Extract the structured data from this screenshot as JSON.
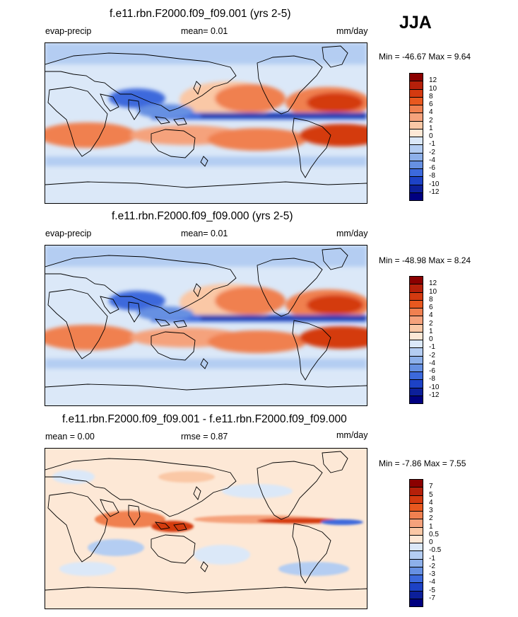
{
  "season": "JJA",
  "panels": [
    {
      "title": "f.e11.rbn.F2000.f09_f09.001 (yrs 2-5)",
      "left_label": "evap-precip",
      "center_label": "mean=   0.01",
      "units": "mm/day",
      "minmax": "Min = -46.67 Max =   9.64",
      "colorbar_labels": [
        "12",
        "10",
        "8",
        "6",
        "4",
        "2",
        "1",
        "0",
        "-1",
        "-2",
        "-4",
        "-6",
        "-8",
        "-10",
        "-12"
      ],
      "colorbar_colors": [
        "#8b0000",
        "#b5200a",
        "#d43a10",
        "#e8581f",
        "#f08050",
        "#f5a27c",
        "#fac8a6",
        "#fde8d6",
        "#dbe8f8",
        "#b4cdf2",
        "#8db0ea",
        "#6690e2",
        "#3c69dc",
        "#1d42c6",
        "#0c1f9a",
        "#000080"
      ]
    },
    {
      "title": "f.e11.rbn.F2000.f09_f09.000 (yrs 2-5)",
      "left_label": "evap-precip",
      "center_label": "mean=   0.01",
      "units": "mm/day",
      "minmax": "Min = -48.98 Max =   8.24",
      "colorbar_labels": [
        "12",
        "10",
        "8",
        "6",
        "4",
        "2",
        "1",
        "0",
        "-1",
        "-2",
        "-4",
        "-6",
        "-8",
        "-10",
        "-12"
      ],
      "colorbar_colors": [
        "#8b0000",
        "#b5200a",
        "#d43a10",
        "#e8581f",
        "#f08050",
        "#f5a27c",
        "#fac8a6",
        "#fde8d6",
        "#dbe8f8",
        "#b4cdf2",
        "#8db0ea",
        "#6690e2",
        "#3c69dc",
        "#1d42c6",
        "#0c1f9a",
        "#000080"
      ]
    },
    {
      "title": "f.e11.rbn.F2000.f09_f09.001 - f.e11.rbn.F2000.f09_f09.000",
      "left_label": "mean =   0.00",
      "center_label": "rmse =   0.87",
      "units": "mm/day",
      "minmax": "Min =  -7.86 Max =   7.55",
      "colorbar_labels": [
        "7",
        "5",
        "4",
        "3",
        "2",
        "1",
        "0.5",
        "0",
        "-0.5",
        "-1",
        "-2",
        "-3",
        "-4",
        "-5",
        "-7"
      ],
      "colorbar_colors": [
        "#8b0000",
        "#b5200a",
        "#d43a10",
        "#e8581f",
        "#f08050",
        "#f5a27c",
        "#fac8a6",
        "#fde8d6",
        "#dbe8f8",
        "#b4cdf2",
        "#8db0ea",
        "#6690e2",
        "#3c69dc",
        "#1d42c6",
        "#0c1f9a",
        "#000080"
      ]
    }
  ],
  "chart_data": [
    {
      "type": "heatmap",
      "title": "f.e11.rbn.F2000.f09_f09.001 (yrs 2-5)",
      "variable": "evap-precip",
      "units": "mm/day",
      "mean": 0.01,
      "min": -46.67,
      "max": 9.64,
      "levels": [
        -12,
        -10,
        -8,
        -6,
        -4,
        -2,
        -1,
        0,
        1,
        2,
        4,
        6,
        8,
        10,
        12
      ]
    },
    {
      "type": "heatmap",
      "title": "f.e11.rbn.F2000.f09_f09.000 (yrs 2-5)",
      "variable": "evap-precip",
      "units": "mm/day",
      "mean": 0.01,
      "min": -48.98,
      "max": 8.24,
      "levels": [
        -12,
        -10,
        -8,
        -6,
        -4,
        -2,
        -1,
        0,
        1,
        2,
        4,
        6,
        8,
        10,
        12
      ]
    },
    {
      "type": "heatmap",
      "title": "f.e11.rbn.F2000.f09_f09.001 - f.e11.rbn.F2000.f09_f09.000",
      "units": "mm/day",
      "mean": 0.0,
      "rmse": 0.87,
      "min": -7.86,
      "max": 7.55,
      "levels": [
        -7,
        -5,
        -4,
        -3,
        -2,
        -1,
        -0.5,
        0,
        0.5,
        1,
        2,
        3,
        4,
        5,
        7
      ]
    }
  ]
}
